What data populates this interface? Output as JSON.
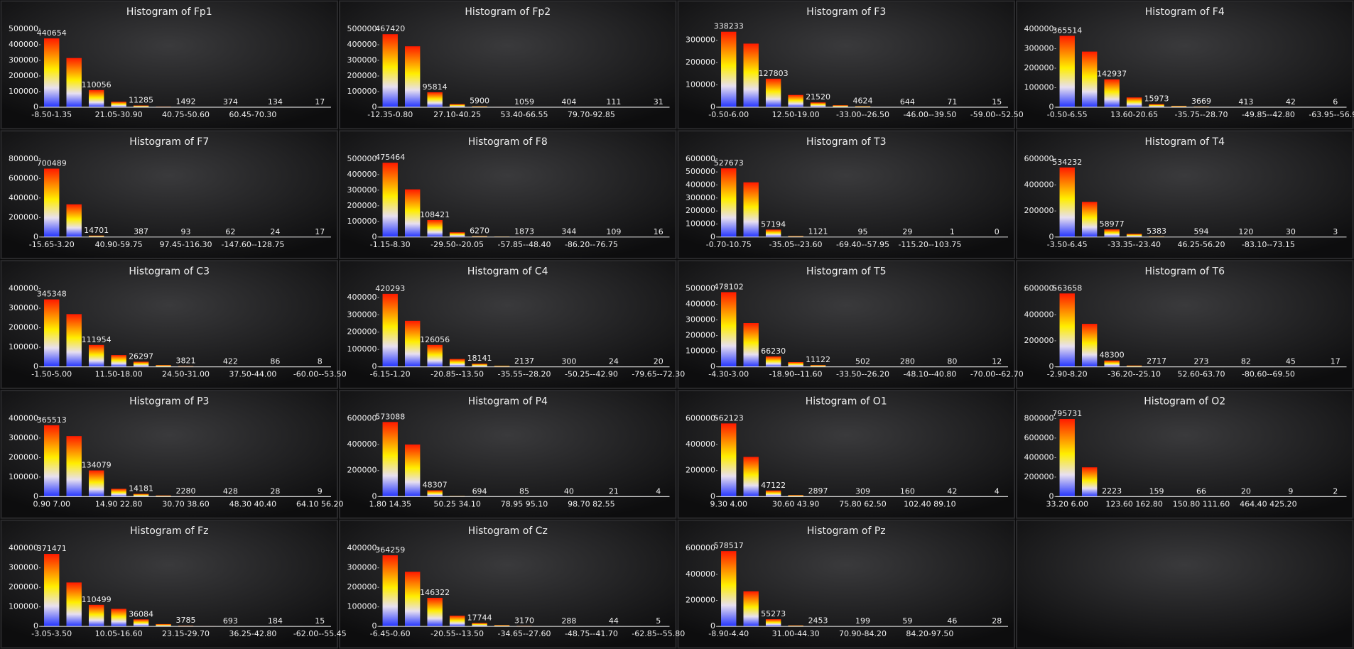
{
  "chart_data": [
    {
      "type": "bar",
      "title": "Histogram of Fp1",
      "categories": [
        "-8.50-1.35",
        null,
        null,
        "21.05-30.90",
        null,
        null,
        "40.75-50.60",
        null,
        null,
        "60.45-70.30",
        null,
        null,
        null
      ],
      "values": [
        440654,
        315000,
        110056,
        35000,
        11285,
        4000,
        1492,
        700,
        374,
        200,
        134,
        60,
        17
      ],
      "ylim": [
        0,
        500000
      ],
      "yticks": [
        0,
        100000,
        200000,
        300000,
        400000,
        500000
      ],
      "colors": [
        "#ff1a00",
        "#ffee00",
        "#2233ff"
      ]
    },
    {
      "type": "bar",
      "title": "Histogram of Fp2",
      "categories": [
        "-12.35-0.80",
        null,
        null,
        "27.10-40.25",
        null,
        null,
        "53.40-66.55",
        null,
        null,
        "79.70-92.85",
        null,
        null,
        null
      ],
      "values": [
        467420,
        390000,
        95814,
        20000,
        5900,
        2500,
        1059,
        600,
        404,
        200,
        111,
        60,
        31
      ],
      "ylim": [
        0,
        500000
      ],
      "yticks": [
        0,
        100000,
        200000,
        300000,
        400000,
        500000
      ],
      "colors": [
        "#ff1a00",
        "#ffee00",
        "#2233ff"
      ]
    },
    {
      "type": "bar",
      "title": "Histogram of F3",
      "categories": [
        "-0.50-6.00",
        null,
        null,
        "12.50-19.00",
        null,
        null,
        "-33.00--26.50",
        null,
        null,
        "-46.00--39.50",
        null,
        null,
        "-59.00--52.50"
      ],
      "values": [
        338233,
        285000,
        127803,
        55000,
        21520,
        9000,
        4624,
        1500,
        644,
        200,
        71,
        30,
        15
      ],
      "ylim": [
        0,
        350000
      ],
      "yticks": [
        0,
        100000,
        200000,
        300000
      ],
      "colors": [
        "#ff1a00",
        "#ffee00",
        "#2233ff"
      ]
    },
    {
      "type": "bar",
      "title": "Histogram of F4",
      "categories": [
        "-0.50-6.55",
        null,
        null,
        "13.60-20.65",
        null,
        null,
        "-35.75--28.70",
        null,
        null,
        "-49.85--42.80",
        null,
        null,
        "-63.95--56.90"
      ],
      "values": [
        365514,
        285000,
        142937,
        50000,
        15973,
        7000,
        3669,
        1000,
        413,
        120,
        42,
        15,
        6
      ],
      "ylim": [
        0,
        400000
      ],
      "yticks": [
        0,
        100000,
        200000,
        300000,
        400000
      ],
      "colors": [
        "#ff1a00",
        "#ffee00",
        "#2233ff"
      ]
    },
    {
      "type": "bar",
      "title": "Histogram of F7",
      "categories": [
        "-15.65-3.20",
        null,
        null,
        "40.90-59.75",
        null,
        null,
        "97.45-116.30",
        null,
        null,
        "-147.60--128.75",
        null,
        null,
        null
      ],
      "values": [
        700489,
        335000,
        14701,
        2000,
        387,
        150,
        93,
        75,
        62,
        40,
        24,
        20,
        17
      ],
      "ylim": [
        0,
        800000
      ],
      "yticks": [
        0,
        200000,
        400000,
        600000,
        800000
      ],
      "colors": [
        "#ff1a00",
        "#ffee00",
        "#2233ff"
      ]
    },
    {
      "type": "bar",
      "title": "Histogram of F8",
      "categories": [
        "-1.15-8.30",
        null,
        null,
        "-29.50--20.05",
        null,
        null,
        "-57.85--48.40",
        null,
        null,
        "-86.20--76.75",
        null,
        null,
        null
      ],
      "values": [
        475464,
        305000,
        108421,
        30000,
        6270,
        3500,
        1873,
        700,
        344,
        180,
        109,
        40,
        16
      ],
      "ylim": [
        0,
        500000
      ],
      "yticks": [
        0,
        100000,
        200000,
        300000,
        400000,
        500000
      ],
      "colors": [
        "#ff1a00",
        "#ffee00",
        "#2233ff"
      ]
    },
    {
      "type": "bar",
      "title": "Histogram of T3",
      "categories": [
        "-0.70-10.75",
        null,
        null,
        "-35.05--23.60",
        null,
        null,
        "-69.40--57.95",
        null,
        null,
        "-115.20--103.75",
        null,
        null,
        null
      ],
      "values": [
        527673,
        420000,
        57194,
        8000,
        1121,
        300,
        95,
        50,
        29,
        5,
        1,
        1,
        0
      ],
      "ylim": [
        0,
        600000
      ],
      "yticks": [
        0,
        100000,
        200000,
        300000,
        400000,
        500000,
        600000
      ],
      "colors": [
        "#ff1a00",
        "#ffee00",
        "#2233ff"
      ]
    },
    {
      "type": "bar",
      "title": "Histogram of T4",
      "categories": [
        "-3.50-6.45",
        null,
        null,
        "-33.35--23.40",
        null,
        null,
        "46.25-56.20",
        null,
        null,
        "-83.10--73.15",
        null,
        null,
        null
      ],
      "values": [
        534232,
        270000,
        58977,
        25000,
        5383,
        1500,
        594,
        250,
        120,
        60,
        30,
        10,
        3
      ],
      "ylim": [
        0,
        600000
      ],
      "yticks": [
        0,
        200000,
        400000,
        600000
      ],
      "colors": [
        "#ff1a00",
        "#ffee00",
        "#2233ff"
      ]
    },
    {
      "type": "bar",
      "title": "Histogram of C3",
      "categories": [
        "-1.50-5.00",
        null,
        null,
        "11.50-18.00",
        null,
        null,
        "24.50-31.00",
        null,
        null,
        "37.50-44.00",
        null,
        null,
        "-60.00--53.50"
      ],
      "values": [
        345348,
        270000,
        111954,
        60000,
        26297,
        9000,
        3821,
        1200,
        422,
        180,
        86,
        25,
        8
      ],
      "ylim": [
        0,
        400000
      ],
      "yticks": [
        0,
        100000,
        200000,
        300000,
        400000
      ],
      "colors": [
        "#ff1a00",
        "#ffee00",
        "#2233ff"
      ]
    },
    {
      "type": "bar",
      "title": "Histogram of C4",
      "categories": [
        "-6.15-1.20",
        null,
        null,
        "-20.85--13.50",
        null,
        null,
        "-35.55--28.20",
        null,
        null,
        "-50.25--42.90",
        null,
        null,
        "-79.65--72.30"
      ],
      "values": [
        420293,
        265000,
        126056,
        45000,
        18141,
        6000,
        2137,
        800,
        300,
        80,
        24,
        22,
        20
      ],
      "ylim": [
        0,
        450000
      ],
      "yticks": [
        0,
        100000,
        200000,
        300000,
        400000
      ],
      "colors": [
        "#ff1a00",
        "#ffee00",
        "#2233ff"
      ]
    },
    {
      "type": "bar",
      "title": "Histogram of T5",
      "categories": [
        "-4.30-3.00",
        null,
        null,
        "-18.90--11.60",
        null,
        null,
        "-33.50--26.20",
        null,
        null,
        "-48.10--40.80",
        null,
        null,
        "-70.00--62.70"
      ],
      "values": [
        478102,
        280000,
        66230,
        30000,
        11122,
        2000,
        502,
        350,
        280,
        150,
        80,
        30,
        12
      ],
      "ylim": [
        0,
        500000
      ],
      "yticks": [
        0,
        100000,
        200000,
        300000,
        400000,
        500000
      ],
      "colors": [
        "#ff1a00",
        "#ffee00",
        "#2233ff"
      ]
    },
    {
      "type": "bar",
      "title": "Histogram of T6",
      "categories": [
        "-2.90-8.20",
        null,
        null,
        "-36.20--25.10",
        null,
        null,
        "52.60-63.70",
        null,
        null,
        "-80.60--69.50",
        null,
        null,
        null
      ],
      "values": [
        563658,
        330000,
        48300,
        10000,
        2717,
        700,
        273,
        150,
        82,
        60,
        45,
        25,
        17
      ],
      "ylim": [
        0,
        600000
      ],
      "yticks": [
        0,
        200000,
        400000,
        600000
      ],
      "colors": [
        "#ff1a00",
        "#ffee00",
        "#2233ff"
      ]
    },
    {
      "type": "bar",
      "title": "Histogram of P3",
      "categories": [
        "0.90 7.00",
        null,
        null,
        "14.90 22.80",
        null,
        null,
        "30.70 38.60",
        null,
        null,
        "48.30 40.40",
        null,
        null,
        "64.10 56.20"
      ],
      "values": [
        365513,
        310000,
        134079,
        40000,
        14181,
        6000,
        2280,
        900,
        428,
        100,
        28,
        15,
        9
      ],
      "ylim": [
        0,
        400000
      ],
      "yticks": [
        0,
        100000,
        200000,
        300000,
        400000
      ],
      "colors": [
        "#ff1a00",
        "#ffee00",
        "#2233ff"
      ]
    },
    {
      "type": "bar",
      "title": "Histogram of P4",
      "categories": [
        "1.80 14.35",
        null,
        null,
        "50.25 34.10",
        null,
        null,
        "78.95 95.10",
        null,
        null,
        "98.70 82.55",
        null,
        null,
        null
      ],
      "values": [
        573088,
        400000,
        48307,
        5000,
        694,
        200,
        85,
        60,
        40,
        30,
        21,
        10,
        4
      ],
      "ylim": [
        0,
        600000
      ],
      "yticks": [
        0,
        200000,
        400000,
        600000
      ],
      "colors": [
        "#ff1a00",
        "#ffee00",
        "#2233ff"
      ]
    },
    {
      "type": "bar",
      "title": "Histogram of O1",
      "categories": [
        "9.30 4.00",
        null,
        null,
        "30.60 43.90",
        null,
        null,
        "75.80 62.50",
        null,
        null,
        "102.40 89.10",
        null,
        null,
        null
      ],
      "values": [
        562123,
        305000,
        47122,
        12000,
        2897,
        800,
        309,
        220,
        160,
        80,
        42,
        15,
        4
      ],
      "ylim": [
        0,
        600000
      ],
      "yticks": [
        0,
        200000,
        400000,
        600000
      ],
      "colors": [
        "#ff1a00",
        "#ffee00",
        "#2233ff"
      ]
    },
    {
      "type": "bar",
      "title": "Histogram of O2",
      "categories": [
        "33.20 6.00",
        null,
        null,
        "123.60 162.80",
        null,
        null,
        "150.80 111.60",
        null,
        null,
        "464.40 425.20",
        null,
        null,
        null
      ],
      "values": [
        795731,
        300000,
        2223,
        500,
        159,
        100,
        66,
        40,
        20,
        15,
        9,
        5,
        2
      ],
      "ylim": [
        0,
        800000
      ],
      "yticks": [
        0,
        200000,
        400000,
        600000,
        800000
      ],
      "colors": [
        "#ff1a00",
        "#ffee00",
        "#2233ff"
      ]
    },
    {
      "type": "bar",
      "title": "Histogram of Fz",
      "categories": [
        "-3.05-3.50",
        null,
        null,
        "10.05-16.60",
        null,
        null,
        "23.15-29.70",
        null,
        null,
        "36.25-42.80",
        null,
        null,
        "-62.00--55.45"
      ],
      "values": [
        371471,
        225000,
        110499,
        90000,
        36084,
        12000,
        3785,
        1500,
        693,
        350,
        184,
        50,
        15
      ],
      "ylim": [
        0,
        400000
      ],
      "yticks": [
        0,
        100000,
        200000,
        300000,
        400000
      ],
      "colors": [
        "#ff1a00",
        "#ffee00",
        "#2233ff"
      ]
    },
    {
      "type": "bar",
      "title": "Histogram of Cz",
      "categories": [
        "-6.45-0.60",
        null,
        null,
        "-20.55--13.50",
        null,
        null,
        "-34.65--27.60",
        null,
        null,
        "-48.75--41.70",
        null,
        null,
        "-62.85--55.80"
      ],
      "values": [
        364259,
        280000,
        146322,
        55000,
        17744,
        7000,
        3170,
        800,
        288,
        120,
        44,
        15,
        5
      ],
      "ylim": [
        0,
        400000
      ],
      "yticks": [
        0,
        100000,
        200000,
        300000,
        400000
      ],
      "colors": [
        "#ff1a00",
        "#ffee00",
        "#2233ff"
      ]
    },
    {
      "type": "bar",
      "title": "Histogram of Pz",
      "categories": [
        "-8.90-4.40",
        null,
        null,
        "31.00-44.30",
        null,
        null,
        "70.90-84.20",
        null,
        null,
        "84.20-97.50",
        null,
        null,
        null
      ],
      "values": [
        578517,
        270000,
        55273,
        8000,
        2453,
        500,
        199,
        100,
        59,
        50,
        46,
        35,
        28
      ],
      "ylim": [
        0,
        600000
      ],
      "yticks": [
        0,
        200000,
        400000,
        600000
      ],
      "colors": [
        "#ff1a00",
        "#ffee00",
        "#2233ff"
      ]
    }
  ]
}
